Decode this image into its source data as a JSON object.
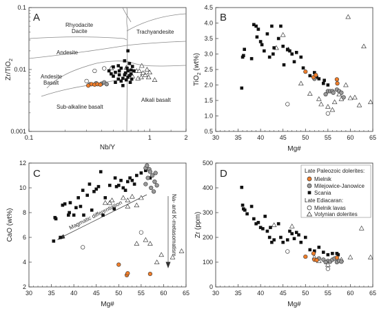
{
  "colors": {
    "mielnik": "#ef7d2a",
    "milejowice": "#9a9a9a",
    "scania": "#111111",
    "open": "#ffffff",
    "boundary": "#888888",
    "frame": "#333333"
  },
  "legend": {
    "group1_title": "Late Paleozoic dolerites:",
    "group2_title": "Late Ediacaran:",
    "items": [
      {
        "key": "mielnik",
        "label": "Mielnik",
        "symbol": "circle-filled-orange"
      },
      {
        "key": "milejowice",
        "label": "Milejowice-Janowice",
        "symbol": "circle-filled-grey"
      },
      {
        "key": "scania",
        "label": "Scania",
        "symbol": "square-filled-black"
      },
      {
        "key": "mielnik_lavas",
        "label": "Mielnik lavas",
        "symbol": "circle-open"
      },
      {
        "key": "volynian",
        "label": "Volynian dolerites",
        "symbol": "triangle-open"
      }
    ]
  },
  "chart_data": [
    {
      "panel": "A",
      "type": "scatter",
      "xscale": "log",
      "yscale": "log",
      "xlabel": "Nb/Y",
      "ylabel": "Zr/TiO2",
      "xlim": [
        0.1,
        2
      ],
      "ylim": [
        0.001,
        0.1
      ],
      "xticks": [
        "0.1",
        "1",
        "2"
      ],
      "yticks": [
        "0.001",
        "0.01",
        "0.1"
      ],
      "field_labels": [
        "Rhyodacite",
        "Dacite",
        "Trachyandesite",
        "Andesite",
        "Andesite",
        "Basalt",
        "Sub-alkaline basalt",
        "Alkali basalt"
      ],
      "series": {
        "mielnik": [
          [
            0.31,
            0.0055
          ],
          [
            0.33,
            0.0058
          ],
          [
            0.35,
            0.0057
          ],
          [
            0.37,
            0.0058
          ],
          [
            0.39,
            0.0057
          ]
        ],
        "milejowice": [
          [
            0.32,
            0.0058
          ],
          [
            0.36,
            0.006
          ],
          [
            0.4,
            0.0059
          ],
          [
            0.42,
            0.0062
          ],
          [
            0.44,
            0.0058
          ]
        ],
        "scania": [
          [
            0.48,
            0.0085
          ],
          [
            0.5,
            0.0078
          ],
          [
            0.52,
            0.009
          ],
          [
            0.55,
            0.007
          ],
          [
            0.56,
            0.0095
          ],
          [
            0.58,
            0.0065
          ],
          [
            0.6,
            0.0072
          ],
          [
            0.62,
            0.0082
          ],
          [
            0.65,
            0.0105
          ],
          [
            0.66,
            0.0095
          ],
          [
            0.66,
            0.0075
          ],
          [
            0.68,
            0.008
          ],
          [
            0.7,
            0.0098
          ],
          [
            0.71,
            0.007
          ],
          [
            0.68,
            0.0125
          ],
          [
            0.72,
            0.0112
          ],
          [
            0.66,
            0.02
          ],
          [
            0.6,
            0.0055
          ],
          [
            0.52,
            0.0062
          ],
          [
            0.5,
            0.011
          ],
          [
            0.46,
            0.0095
          ],
          [
            0.55,
            0.0115
          ],
          [
            0.63,
            0.0088
          ],
          [
            0.7,
            0.0085
          ],
          [
            0.74,
            0.0095
          ],
          [
            0.62,
            0.0138
          ],
          [
            0.56,
            0.0082
          ],
          [
            0.69,
            0.0062
          ],
          [
            0.58,
            0.0105
          ],
          [
            0.64,
            0.0068
          ]
        ],
        "mielnik_lavas": [
          [
            0.3,
            0.0065
          ],
          [
            0.35,
            0.0095
          ],
          [
            0.42,
            0.0104
          ]
        ],
        "volynian": [
          [
            0.48,
            0.0105
          ],
          [
            0.64,
            0.0107
          ],
          [
            0.78,
            0.0095
          ],
          [
            0.82,
            0.0095
          ],
          [
            0.72,
            0.0078
          ],
          [
            0.8,
            0.0072
          ],
          [
            0.85,
            0.0075
          ],
          [
            0.92,
            0.0082
          ],
          [
            0.98,
            0.0075
          ],
          [
            1.1,
            0.0068
          ],
          [
            0.86,
            0.0115
          ],
          [
            0.95,
            0.01
          ],
          [
            0.88,
            0.0088
          ],
          [
            1.0,
            0.009
          ]
        ]
      }
    },
    {
      "panel": "B",
      "type": "scatter",
      "xlabel": "Mg#",
      "ylabel": "TiO2 (wt%)",
      "xlim": [
        30,
        65
      ],
      "ylim": [
        0.5,
        4.5
      ],
      "xticks": [
        30,
        35,
        40,
        45,
        50,
        55,
        60,
        65
      ],
      "yticks": [
        0.5,
        1.0,
        1.5,
        2.0,
        2.5,
        3.0,
        3.5,
        4.0,
        4.5
      ],
      "series": {
        "mielnik": [
          [
            50,
            2.43
          ],
          [
            51.8,
            2.25
          ],
          [
            52.3,
            2.32
          ],
          [
            57,
            2.18
          ],
          [
            57.1,
            2.05
          ]
        ],
        "milejowice": [
          [
            52,
            2.2
          ],
          [
            55,
            1.8
          ],
          [
            55.5,
            1.8
          ],
          [
            56,
            1.8
          ],
          [
            56.2,
            1.75
          ],
          [
            57,
            1.85
          ],
          [
            57.5,
            1.8
          ],
          [
            58,
            1.75
          ],
          [
            58.5,
            1.6
          ],
          [
            54.5,
            1.7
          ]
        ],
        "scania": [
          [
            35.8,
            1.9
          ],
          [
            36,
            2.9
          ],
          [
            36.2,
            2.95
          ],
          [
            36.4,
            3.15
          ],
          [
            38,
            2.85
          ],
          [
            38.5,
            3.95
          ],
          [
            39,
            3.9
          ],
          [
            39.5,
            3.8
          ],
          [
            39.2,
            3.55
          ],
          [
            40,
            3.4
          ],
          [
            40.3,
            3.3
          ],
          [
            40.8,
            3.1
          ],
          [
            41.5,
            3.65
          ],
          [
            42,
            2.9
          ],
          [
            42.5,
            3.9
          ],
          [
            42.8,
            3.0
          ],
          [
            43,
            3.2
          ],
          [
            44,
            3.5
          ],
          [
            44.5,
            3.9
          ],
          [
            45,
            3.25
          ],
          [
            45.2,
            2.65
          ],
          [
            46.5,
            3.1
          ],
          [
            47,
            3.0
          ],
          [
            48,
            3.05
          ],
          [
            49,
            2.9
          ],
          [
            51,
            2.3
          ],
          [
            52,
            2.4
          ],
          [
            52.5,
            2.25
          ],
          [
            53,
            2.2
          ],
          [
            54,
            2.05
          ],
          [
            55,
            2.0
          ],
          [
            54.2,
            2.15
          ],
          [
            49.5,
            2.55
          ],
          [
            46,
            3.15
          ],
          [
            47.5,
            2.75
          ]
        ],
        "mielnik_lavas": [
          [
            46,
            1.38
          ],
          [
            55,
            1.08
          ]
        ],
        "volynian": [
          [
            43.5,
            3.2
          ],
          [
            45,
            3.62
          ],
          [
            46.2,
            3.15
          ],
          [
            49,
            2.05
          ],
          [
            51,
            1.72
          ],
          [
            53,
            1.55
          ],
          [
            53.5,
            1.38
          ],
          [
            55,
            1.3
          ],
          [
            56,
            1.2
          ],
          [
            57.5,
            1.7
          ],
          [
            58,
            1.55
          ],
          [
            59,
            2.0
          ],
          [
            60,
            1.58
          ],
          [
            61,
            1.6
          ],
          [
            62,
            1.35
          ],
          [
            59.5,
            4.2
          ],
          [
            63,
            3.25
          ],
          [
            64.5,
            1.45
          ],
          [
            56.5,
            1.45
          ]
        ]
      }
    },
    {
      "panel": "C",
      "type": "scatter",
      "xlabel": "Mg#",
      "ylabel": "CaO (wt%)",
      "xlim": [
        30,
        65
      ],
      "ylim": [
        2,
        12
      ],
      "xticks": [
        30,
        35,
        40,
        45,
        50,
        55,
        60,
        65
      ],
      "yticks": [
        2,
        4,
        6,
        8,
        10,
        12
      ],
      "annotations": [
        "Magmatic differentiation",
        "Na- and K-metasomatism"
      ],
      "series": {
        "mielnik": [
          [
            50,
            3.8
          ],
          [
            51.8,
            2.95
          ],
          [
            52,
            3.1
          ],
          [
            57,
            3.05
          ]
        ],
        "milejowice": [
          [
            56,
            11.6
          ],
          [
            56.3,
            11.8
          ],
          [
            56.8,
            11.5
          ],
          [
            57,
            11.3
          ],
          [
            57.5,
            11.0
          ],
          [
            58,
            10.5
          ],
          [
            58.5,
            10.2
          ],
          [
            56.5,
            10.8
          ],
          [
            57.2,
            10.0
          ],
          [
            57.8,
            9.7
          ],
          [
            58.2,
            11.2
          ],
          [
            56,
            10.3
          ]
        ],
        "scania": [
          [
            35.5,
            5.7
          ],
          [
            35.8,
            7.6
          ],
          [
            36,
            7.5
          ],
          [
            37,
            6.0
          ],
          [
            37.5,
            8.6
          ],
          [
            38,
            8.7
          ],
          [
            38.8,
            7.8
          ],
          [
            39,
            8.0
          ],
          [
            39.2,
            8.8
          ],
          [
            40,
            7.8
          ],
          [
            40.5,
            8.4
          ],
          [
            41,
            9.2
          ],
          [
            41.5,
            8.5
          ],
          [
            42,
            9.8
          ],
          [
            42.2,
            7.8
          ],
          [
            43,
            9.4
          ],
          [
            43.5,
            10.3
          ],
          [
            44,
            8.2
          ],
          [
            44.5,
            9.7
          ],
          [
            45,
            9.9
          ],
          [
            45.5,
            10.1
          ],
          [
            46,
            11.3
          ],
          [
            46.5,
            7.8
          ],
          [
            47,
            9.2
          ],
          [
            48,
            10.2
          ],
          [
            49,
            8.3
          ],
          [
            49.5,
            10.1
          ],
          [
            50,
            10.2
          ],
          [
            50.5,
            10.6
          ],
          [
            51,
            10.0
          ],
          [
            52,
            10.5
          ],
          [
            53,
            10.6
          ],
          [
            54,
            11.0
          ],
          [
            55,
            11.2
          ],
          [
            56,
            11.4
          ],
          [
            57,
            10.8
          ],
          [
            53.5,
            10.3
          ],
          [
            52.5,
            10.8
          ],
          [
            51.5,
            9.8
          ],
          [
            49.2,
            10.8
          ]
        ],
        "mielnik_lavas": [
          [
            42,
            5.2
          ],
          [
            55,
            6.4
          ]
        ],
        "volynian": [
          [
            47,
            8.8
          ],
          [
            48,
            8.8
          ],
          [
            48.5,
            9.0
          ],
          [
            51,
            9.2
          ],
          [
            52,
            8.5
          ],
          [
            53,
            9.3
          ],
          [
            54,
            8.6
          ],
          [
            55,
            9.2
          ],
          [
            54,
            5.5
          ],
          [
            56,
            5.8
          ],
          [
            57,
            5.5
          ],
          [
            58.5,
            4.0
          ],
          [
            59.5,
            4.6
          ],
          [
            62,
            4.4
          ],
          [
            64,
            4.9
          ],
          [
            52,
            9.0
          ]
        ]
      }
    },
    {
      "panel": "D",
      "type": "scatter",
      "xlabel": "Mg#",
      "ylabel": "Zr (ppm)",
      "xlim": [
        30,
        65
      ],
      "ylim": [
        0,
        500
      ],
      "xticks": [
        30,
        35,
        40,
        45,
        50,
        55,
        60,
        65
      ],
      "yticks": [
        0,
        100,
        200,
        300,
        400,
        500
      ],
      "series": {
        "mielnik": [
          [
            50,
            122
          ],
          [
            51.8,
            135
          ],
          [
            52,
            110
          ],
          [
            52.5,
            108
          ],
          [
            57,
            118
          ]
        ],
        "milejowice": [
          [
            53,
            115
          ],
          [
            54,
            110
          ],
          [
            55,
            105
          ],
          [
            55.5,
            102
          ],
          [
            56,
            110
          ],
          [
            57,
            100
          ],
          [
            57.5,
            105
          ],
          [
            58,
            102
          ],
          [
            56.5,
            115
          ],
          [
            54.5,
            100
          ]
        ],
        "scania": [
          [
            35.8,
            402
          ],
          [
            36,
            330
          ],
          [
            36.2,
            315
          ],
          [
            36.5,
            310
          ],
          [
            37,
            295
          ],
          [
            38,
            325
          ],
          [
            38.5,
            275
          ],
          [
            39,
            255
          ],
          [
            39.5,
            260
          ],
          [
            40,
            240
          ],
          [
            40.5,
            235
          ],
          [
            41,
            285
          ],
          [
            41.5,
            225
          ],
          [
            42,
            200
          ],
          [
            42.5,
            180
          ],
          [
            43,
            190
          ],
          [
            44,
            255
          ],
          [
            44.5,
            200
          ],
          [
            45,
            180
          ],
          [
            46,
            190
          ],
          [
            46.5,
            225
          ],
          [
            47,
            215
          ],
          [
            48,
            220
          ],
          [
            48.5,
            210
          ],
          [
            49,
            180
          ],
          [
            50,
            200
          ],
          [
            51,
            150
          ],
          [
            52,
            145
          ],
          [
            53,
            160
          ],
          [
            54,
            140
          ],
          [
            55,
            130
          ],
          [
            56,
            135
          ],
          [
            57,
            135
          ],
          [
            57.3,
            130
          ],
          [
            42.2,
            240
          ],
          [
            47.5,
            195
          ]
        ],
        "mielnik_lavas": [
          [
            46,
            143
          ],
          [
            55,
            73
          ]
        ],
        "volynian": [
          [
            43,
            250
          ],
          [
            47,
            245
          ],
          [
            53,
            105
          ],
          [
            55,
            90
          ],
          [
            58,
            110
          ],
          [
            60,
            120
          ],
          [
            62.5,
            237
          ],
          [
            64.5,
            120
          ],
          [
            52,
            120
          ]
        ]
      }
    }
  ]
}
